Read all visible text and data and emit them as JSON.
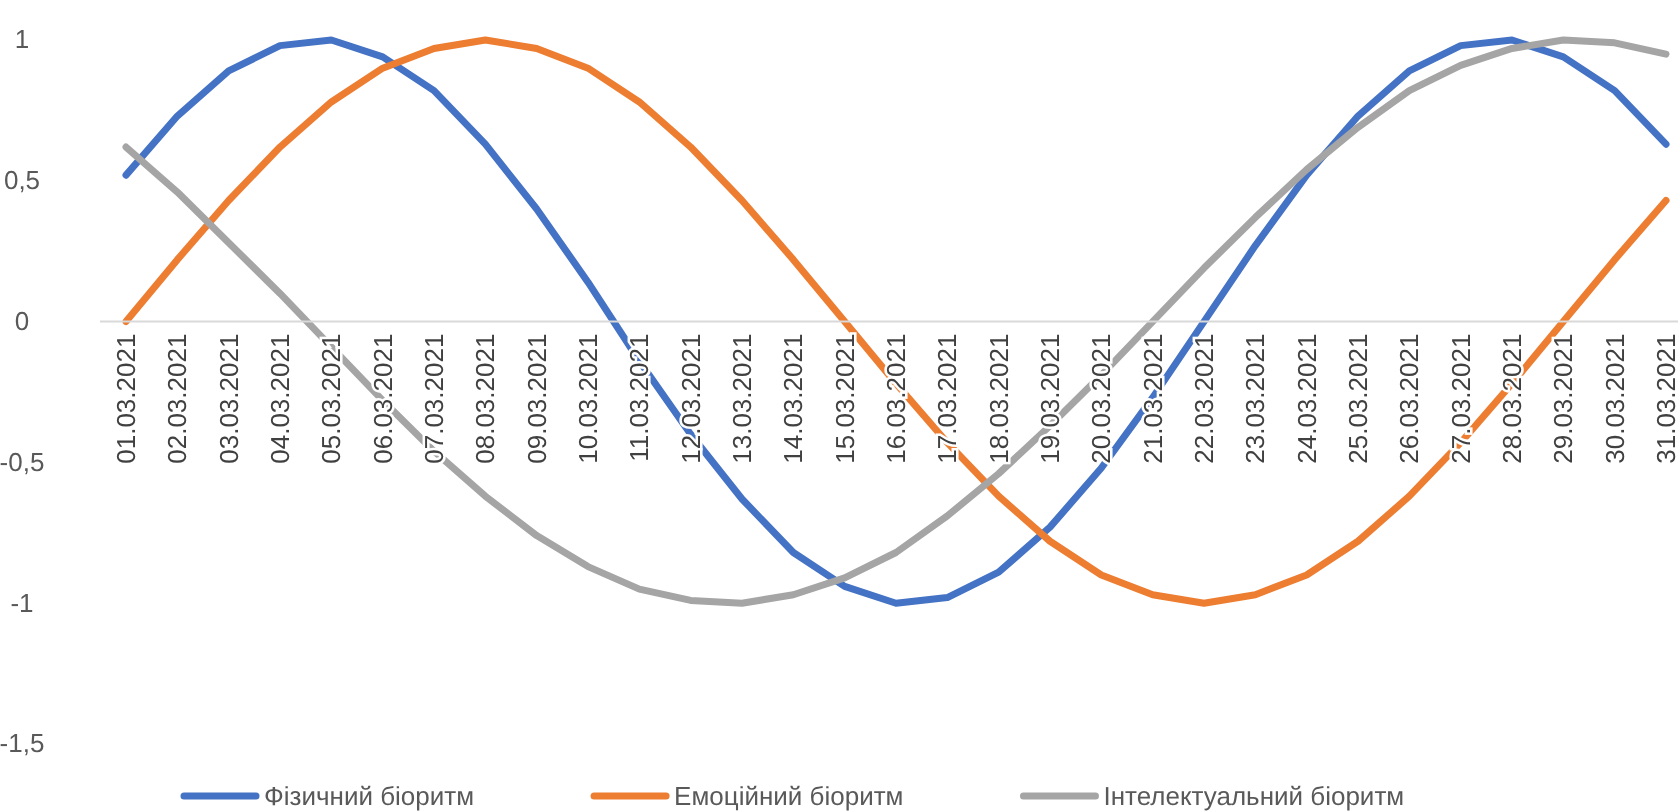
{
  "chart_data": {
    "type": "line",
    "categories": [
      "01.03.2021",
      "02.03.2021",
      "03.03.2021",
      "04.03.2021",
      "05.03.2021",
      "06.03.2021",
      "07.03.2021",
      "08.03.2021",
      "09.03.2021",
      "10.03.2021",
      "11.03.2021",
      "12.03.2021",
      "13.03.2021",
      "14.03.2021",
      "15.03.2021",
      "16.03.2021",
      "17.03.2021",
      "18.03.2021",
      "19.03.2021",
      "20.03.2021",
      "21.03.2021",
      "22.03.2021",
      "23.03.2021",
      "24.03.2021",
      "25.03.2021",
      "26.03.2021",
      "27.03.2021",
      "28.03.2021",
      "29.03.2021",
      "30.03.2021",
      "31.03.2021"
    ],
    "series": [
      {
        "name": "Фізичний біоритм",
        "color": "#4472c4",
        "values": [
          0.52,
          0.73,
          0.89,
          0.98,
          1.0,
          0.94,
          0.82,
          0.63,
          0.4,
          0.14,
          -0.14,
          -0.4,
          -0.63,
          -0.82,
          -0.94,
          -1.0,
          -0.98,
          -0.89,
          -0.73,
          -0.52,
          -0.27,
          0.0,
          0.27,
          0.52,
          0.73,
          0.89,
          0.98,
          1.0,
          0.94,
          0.82,
          0.63
        ]
      },
      {
        "name": "Емоційний біоритм",
        "color": "#ed7d31",
        "values": [
          0,
          0.22,
          0.43,
          0.62,
          0.78,
          0.9,
          0.97,
          1.0,
          0.97,
          0.9,
          0.78,
          0.62,
          0.43,
          0.22,
          0,
          -0.22,
          -0.43,
          -0.62,
          -0.78,
          -0.9,
          -0.97,
          -1.0,
          -0.97,
          -0.9,
          -0.78,
          -0.62,
          -0.43,
          -0.22,
          0,
          0.22,
          0.43
        ]
      },
      {
        "name": "Інтелектуальний біоритм",
        "color": "#a5a5a5",
        "values": [
          0.62,
          0.46,
          0.28,
          0.1,
          -0.09,
          -0.28,
          -0.46,
          -0.62,
          -0.76,
          -0.87,
          -0.95,
          -0.99,
          -1.0,
          -0.97,
          -0.91,
          -0.82,
          -0.69,
          -0.54,
          -0.37,
          -0.19,
          0.0,
          0.19,
          0.37,
          0.54,
          0.69,
          0.82,
          0.91,
          0.97,
          1.0,
          0.99,
          0.95
        ]
      }
    ],
    "ylim": [
      -1.5,
      1
    ],
    "yticks": [
      {
        "value": -1.5,
        "label": "-1,5"
      },
      {
        "value": -1,
        "label": "-1"
      },
      {
        "value": -0.5,
        "label": "-0,5"
      },
      0,
      {
        "value": 0.5,
        "label": "0,5"
      },
      1
    ],
    "grid": false,
    "legend": "bottom",
    "marker": "none",
    "line_style": "solid"
  }
}
